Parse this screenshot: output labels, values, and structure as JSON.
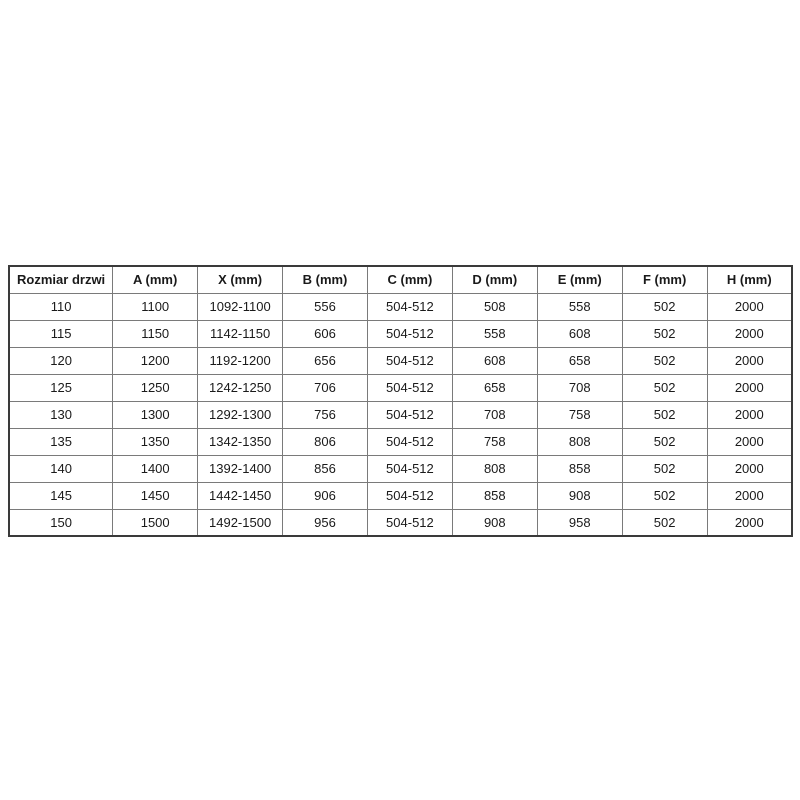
{
  "page": {
    "background_color": "#ffffff",
    "text_color": "#1a1a1a",
    "outer_border_color": "#3a3a3a",
    "grid_border_color": "#7a7a7a"
  },
  "chart_data": {
    "type": "table",
    "title": "",
    "columns": [
      "Rozmiar drzwi",
      "A (mm)",
      "X (mm)",
      "B (mm)",
      "C (mm)",
      "D (mm)",
      "E (mm)",
      "F (mm)",
      "H (mm)"
    ],
    "rows": [
      [
        "110",
        "1100",
        "1092-1100",
        "556",
        "504-512",
        "508",
        "558",
        "502",
        "2000"
      ],
      [
        "115",
        "1150",
        "1142-1150",
        "606",
        "504-512",
        "558",
        "608",
        "502",
        "2000"
      ],
      [
        "120",
        "1200",
        "1192-1200",
        "656",
        "504-512",
        "608",
        "658",
        "502",
        "2000"
      ],
      [
        "125",
        "1250",
        "1242-1250",
        "706",
        "504-512",
        "658",
        "708",
        "502",
        "2000"
      ],
      [
        "130",
        "1300",
        "1292-1300",
        "756",
        "504-512",
        "708",
        "758",
        "502",
        "2000"
      ],
      [
        "135",
        "1350",
        "1342-1350",
        "806",
        "504-512",
        "758",
        "808",
        "502",
        "2000"
      ],
      [
        "140",
        "1400",
        "1392-1400",
        "856",
        "504-512",
        "808",
        "858",
        "502",
        "2000"
      ],
      [
        "145",
        "1450",
        "1442-1450",
        "906",
        "504-512",
        "858",
        "908",
        "502",
        "2000"
      ],
      [
        "150",
        "1500",
        "1492-1500",
        "956",
        "504-512",
        "908",
        "958",
        "502",
        "2000"
      ]
    ]
  }
}
